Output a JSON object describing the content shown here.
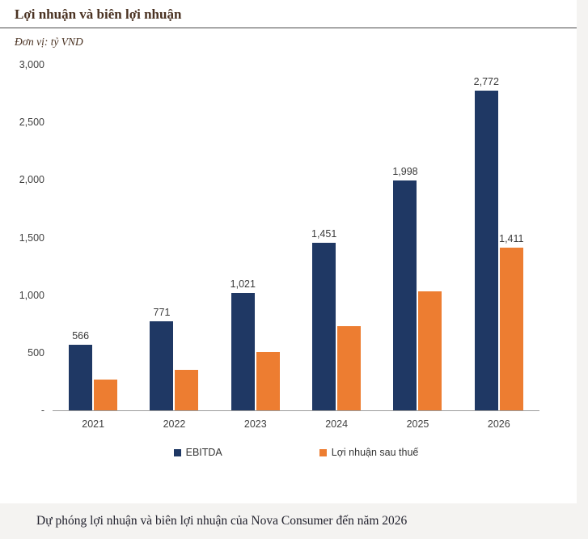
{
  "header": {
    "title": "Lợi nhuận và biên lợi nhuận",
    "unit": "Đơn vị: tỷ VND"
  },
  "chart_data": {
    "type": "bar",
    "title": "Lợi nhuận và biên lợi nhuận",
    "unit_label": "Đơn vị: tỷ VND",
    "categories": [
      "2021",
      "2022",
      "2023",
      "2024",
      "2025",
      "2026"
    ],
    "series": [
      {
        "name": "EBITDA",
        "color": "#1F3864",
        "values": [
          566,
          771,
          1021,
          1451,
          1998,
          2772
        ],
        "labels": [
          "566",
          "771",
          "1,021",
          "1,451",
          "1,998",
          "2,772"
        ]
      },
      {
        "name": "Lợi nhuận sau thuế",
        "color": "#ED7D31",
        "values": [
          270,
          350,
          505,
          730,
          1030,
          1411
        ],
        "labels": [
          "",
          "",
          "",
          "",
          "",
          "1,411"
        ]
      }
    ],
    "ylim": [
      0,
      3000
    ],
    "yticks": [
      {
        "label": "3,000",
        "value": 3000
      },
      {
        "label": "2,500",
        "value": 2500
      },
      {
        "label": "2,000",
        "value": 2000
      },
      {
        "label": "1,500",
        "value": 1500
      },
      {
        "label": "1,000",
        "value": 1000
      },
      {
        "label": "500",
        "value": 500
      },
      {
        "label": "-",
        "value": 0
      }
    ],
    "grid": false,
    "legend_position": "bottom"
  },
  "caption": "Dự phóng lợi nhuận và biên lợi nhuận của Nova Consumer đến năm 2026",
  "colors": {
    "ebitda": "#1F3864",
    "net_profit": "#ED7D31",
    "title_text": "#4A3222",
    "panel_background": "#FFFFFF",
    "page_background": "#F4F3F1",
    "axis_line": "#9C9C9C"
  }
}
